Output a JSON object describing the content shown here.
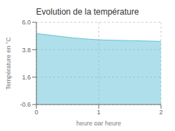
{
  "chart_data": {
    "type": "area",
    "title": "Evolution de la température",
    "xlabel": "heure par heure",
    "ylabel": "Température en °C",
    "x": [
      0,
      0.083,
      0.167,
      0.25,
      0.333,
      0.417,
      0.5,
      0.583,
      0.667,
      0.75,
      0.833,
      0.917,
      1.0,
      1.083,
      1.167,
      1.25,
      1.333,
      1.417,
      1.5,
      1.583,
      1.667,
      1.75,
      1.833,
      1.917,
      2.0
    ],
    "values": [
      5.1,
      5.05,
      5.0,
      4.95,
      4.9,
      4.85,
      4.8,
      4.75,
      4.72,
      4.68,
      4.65,
      4.62,
      4.6,
      4.58,
      4.57,
      4.56,
      4.55,
      4.54,
      4.53,
      4.52,
      4.51,
      4.5,
      4.49,
      4.48,
      4.47
    ],
    "color": "#60c0d8",
    "xlim": [
      0,
      2
    ],
    "ylim": [
      -0.6,
      6.0
    ],
    "xticks": [
      0,
      1,
      2
    ],
    "yticks": [
      -0.6,
      1.6,
      3.8,
      {
        "value": 6.0,
        "label": "6.0"
      }
    ],
    "grid": true
  }
}
